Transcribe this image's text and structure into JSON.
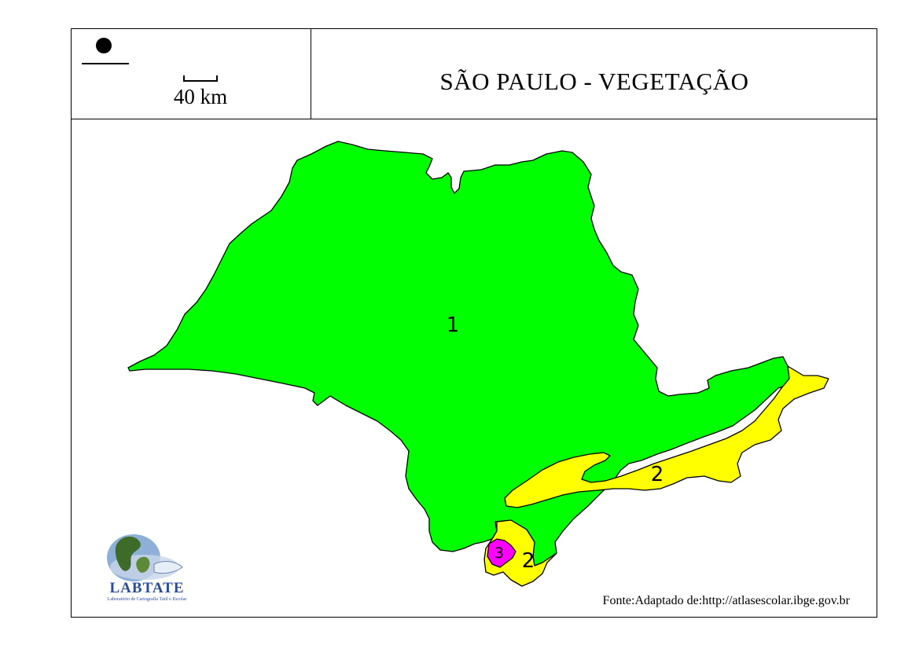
{
  "title": "SÃO PAULO - VEGETAÇÃO",
  "scale": {
    "label": "40 km"
  },
  "regions": [
    {
      "label": "1",
      "color": "#00ff00"
    },
    {
      "label": "2",
      "color": "#ffff00"
    },
    {
      "label": "2",
      "color": "#ffff00"
    },
    {
      "label": "3",
      "color": "#ff00ff"
    }
  ],
  "source": "Fonte:Adaptado de:http://atlasescolar.ibge.gov.br",
  "logo": {
    "name": "LABTATE",
    "subtitle": "Laboratório de Cartografia Tátil e Escolar"
  },
  "icons": {
    "north": "north-arrow-icon",
    "logo": "globe-hand-logo"
  }
}
